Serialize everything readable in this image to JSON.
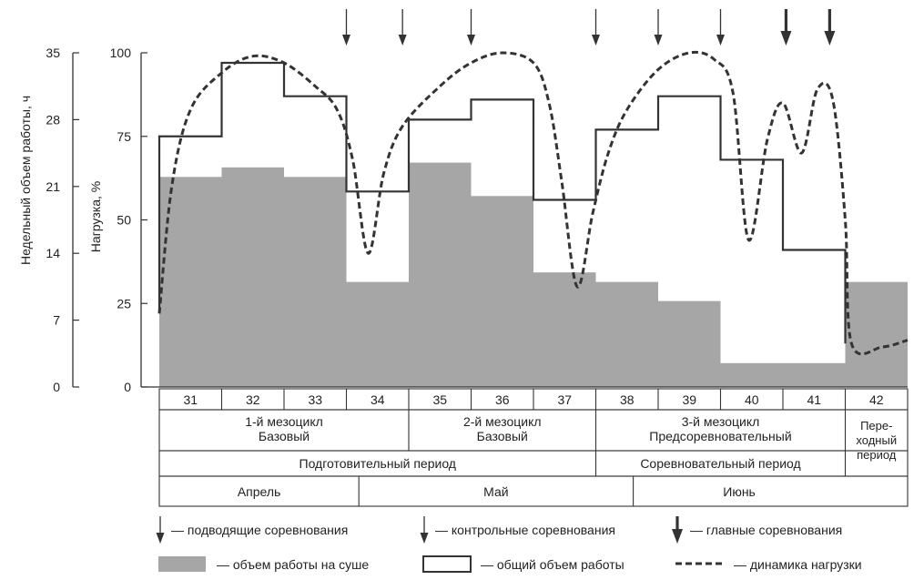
{
  "chart_data": {
    "type": "bar+line",
    "y_axis_left": {
      "label": "Недельный объем работы, ч",
      "range": [
        0,
        35
      ],
      "ticks": [
        "35",
        "28",
        "21",
        "14",
        "7",
        "0"
      ]
    },
    "y_axis_right": {
      "label": "Нагрузка, %",
      "range": [
        0,
        100
      ],
      "ticks": [
        "100",
        "75",
        "50",
        "25",
        "0"
      ]
    },
    "weeks": [
      "31",
      "32",
      "33",
      "34",
      "35",
      "36",
      "37",
      "38",
      "39",
      "40",
      "41",
      "42"
    ],
    "dryland_volume_hours": [
      22,
      23,
      22,
      11,
      23.5,
      20,
      12,
      11,
      9,
      2.5,
      2.5,
      11
    ],
    "total_volume_percent": [
      75,
      97,
      87,
      58.5,
      80,
      86,
      56,
      77,
      87,
      68,
      41,
      null
    ],
    "load_dynamics_percent": [
      [
        31.0,
        22
      ],
      [
        31.2,
        60
      ],
      [
        31.5,
        83
      ],
      [
        32.0,
        94
      ],
      [
        32.5,
        99
      ],
      [
        33.0,
        97
      ],
      [
        33.5,
        90
      ],
      [
        33.85,
        83
      ],
      [
        34.1,
        68
      ],
      [
        34.35,
        40
      ],
      [
        34.6,
        64
      ],
      [
        34.9,
        78
      ],
      [
        35.5,
        90
      ],
      [
        36.0,
        97
      ],
      [
        36.5,
        100
      ],
      [
        37.0,
        97
      ],
      [
        37.25,
        85
      ],
      [
        37.45,
        62
      ],
      [
        37.7,
        30
      ],
      [
        37.95,
        52
      ],
      [
        38.2,
        70
      ],
      [
        38.5,
        83
      ],
      [
        39.0,
        95
      ],
      [
        39.5,
        100
      ],
      [
        39.9,
        98
      ],
      [
        40.2,
        88
      ],
      [
        40.45,
        44
      ],
      [
        40.75,
        74
      ],
      [
        41.0,
        85
      ],
      [
        41.3,
        70
      ],
      [
        41.55,
        89
      ],
      [
        41.8,
        86
      ],
      [
        42.0,
        50
      ],
      [
        42.1,
        13
      ],
      [
        42.6,
        12
      ],
      [
        43.0,
        14
      ]
    ],
    "competitions": {
      "preparatory": [
        34.0,
        34.9,
        36.0,
        38.0,
        39.0,
        40.0
      ],
      "control": [],
      "main": [
        41.05,
        41.75
      ]
    },
    "table": {
      "mesocycles": [
        {
          "line1": "1-й мезоцикл",
          "line2": "Базовый",
          "line3": "",
          "start": 31,
          "end": 34
        },
        {
          "line1": "2-й мезоцикл",
          "line2": "Базовый",
          "line3": "",
          "start": 35,
          "end": 37
        },
        {
          "line1": "3-й мезоцикл",
          "line2": "Предсоревновательный",
          "line3": "",
          "start": 38,
          "end": 41
        },
        {
          "line1": "Пере-",
          "line2": "ходный",
          "line3": "период",
          "start": 42,
          "end": 42
        }
      ],
      "periods": [
        {
          "label": "Подготовительный период",
          "start": 31,
          "end": 37
        },
        {
          "label": "Соревновательный период",
          "start": 38,
          "end": 41
        }
      ],
      "months": [
        {
          "label": "Апрель",
          "start": 31,
          "end": 34.2
        },
        {
          "label": "Май",
          "start": 34.2,
          "end": 38.6
        },
        {
          "label": "Июнь",
          "start": 38.6,
          "end": 42
        }
      ]
    },
    "legend": [
      {
        "key": "prep_comp",
        "label": "— подводящие соревнования"
      },
      {
        "key": "control_comp",
        "label": "— контрольные соревнования"
      },
      {
        "key": "main_comp",
        "label": "— главные соревнования"
      },
      {
        "key": "dryland",
        "label": "— объем работы на суше"
      },
      {
        "key": "total",
        "label": "— общий объем работы"
      },
      {
        "key": "dynamics",
        "label": "— динамика нагрузки"
      }
    ],
    "colors": {
      "bar_fill": "#a6a6a6",
      "line": "#333333"
    }
  }
}
